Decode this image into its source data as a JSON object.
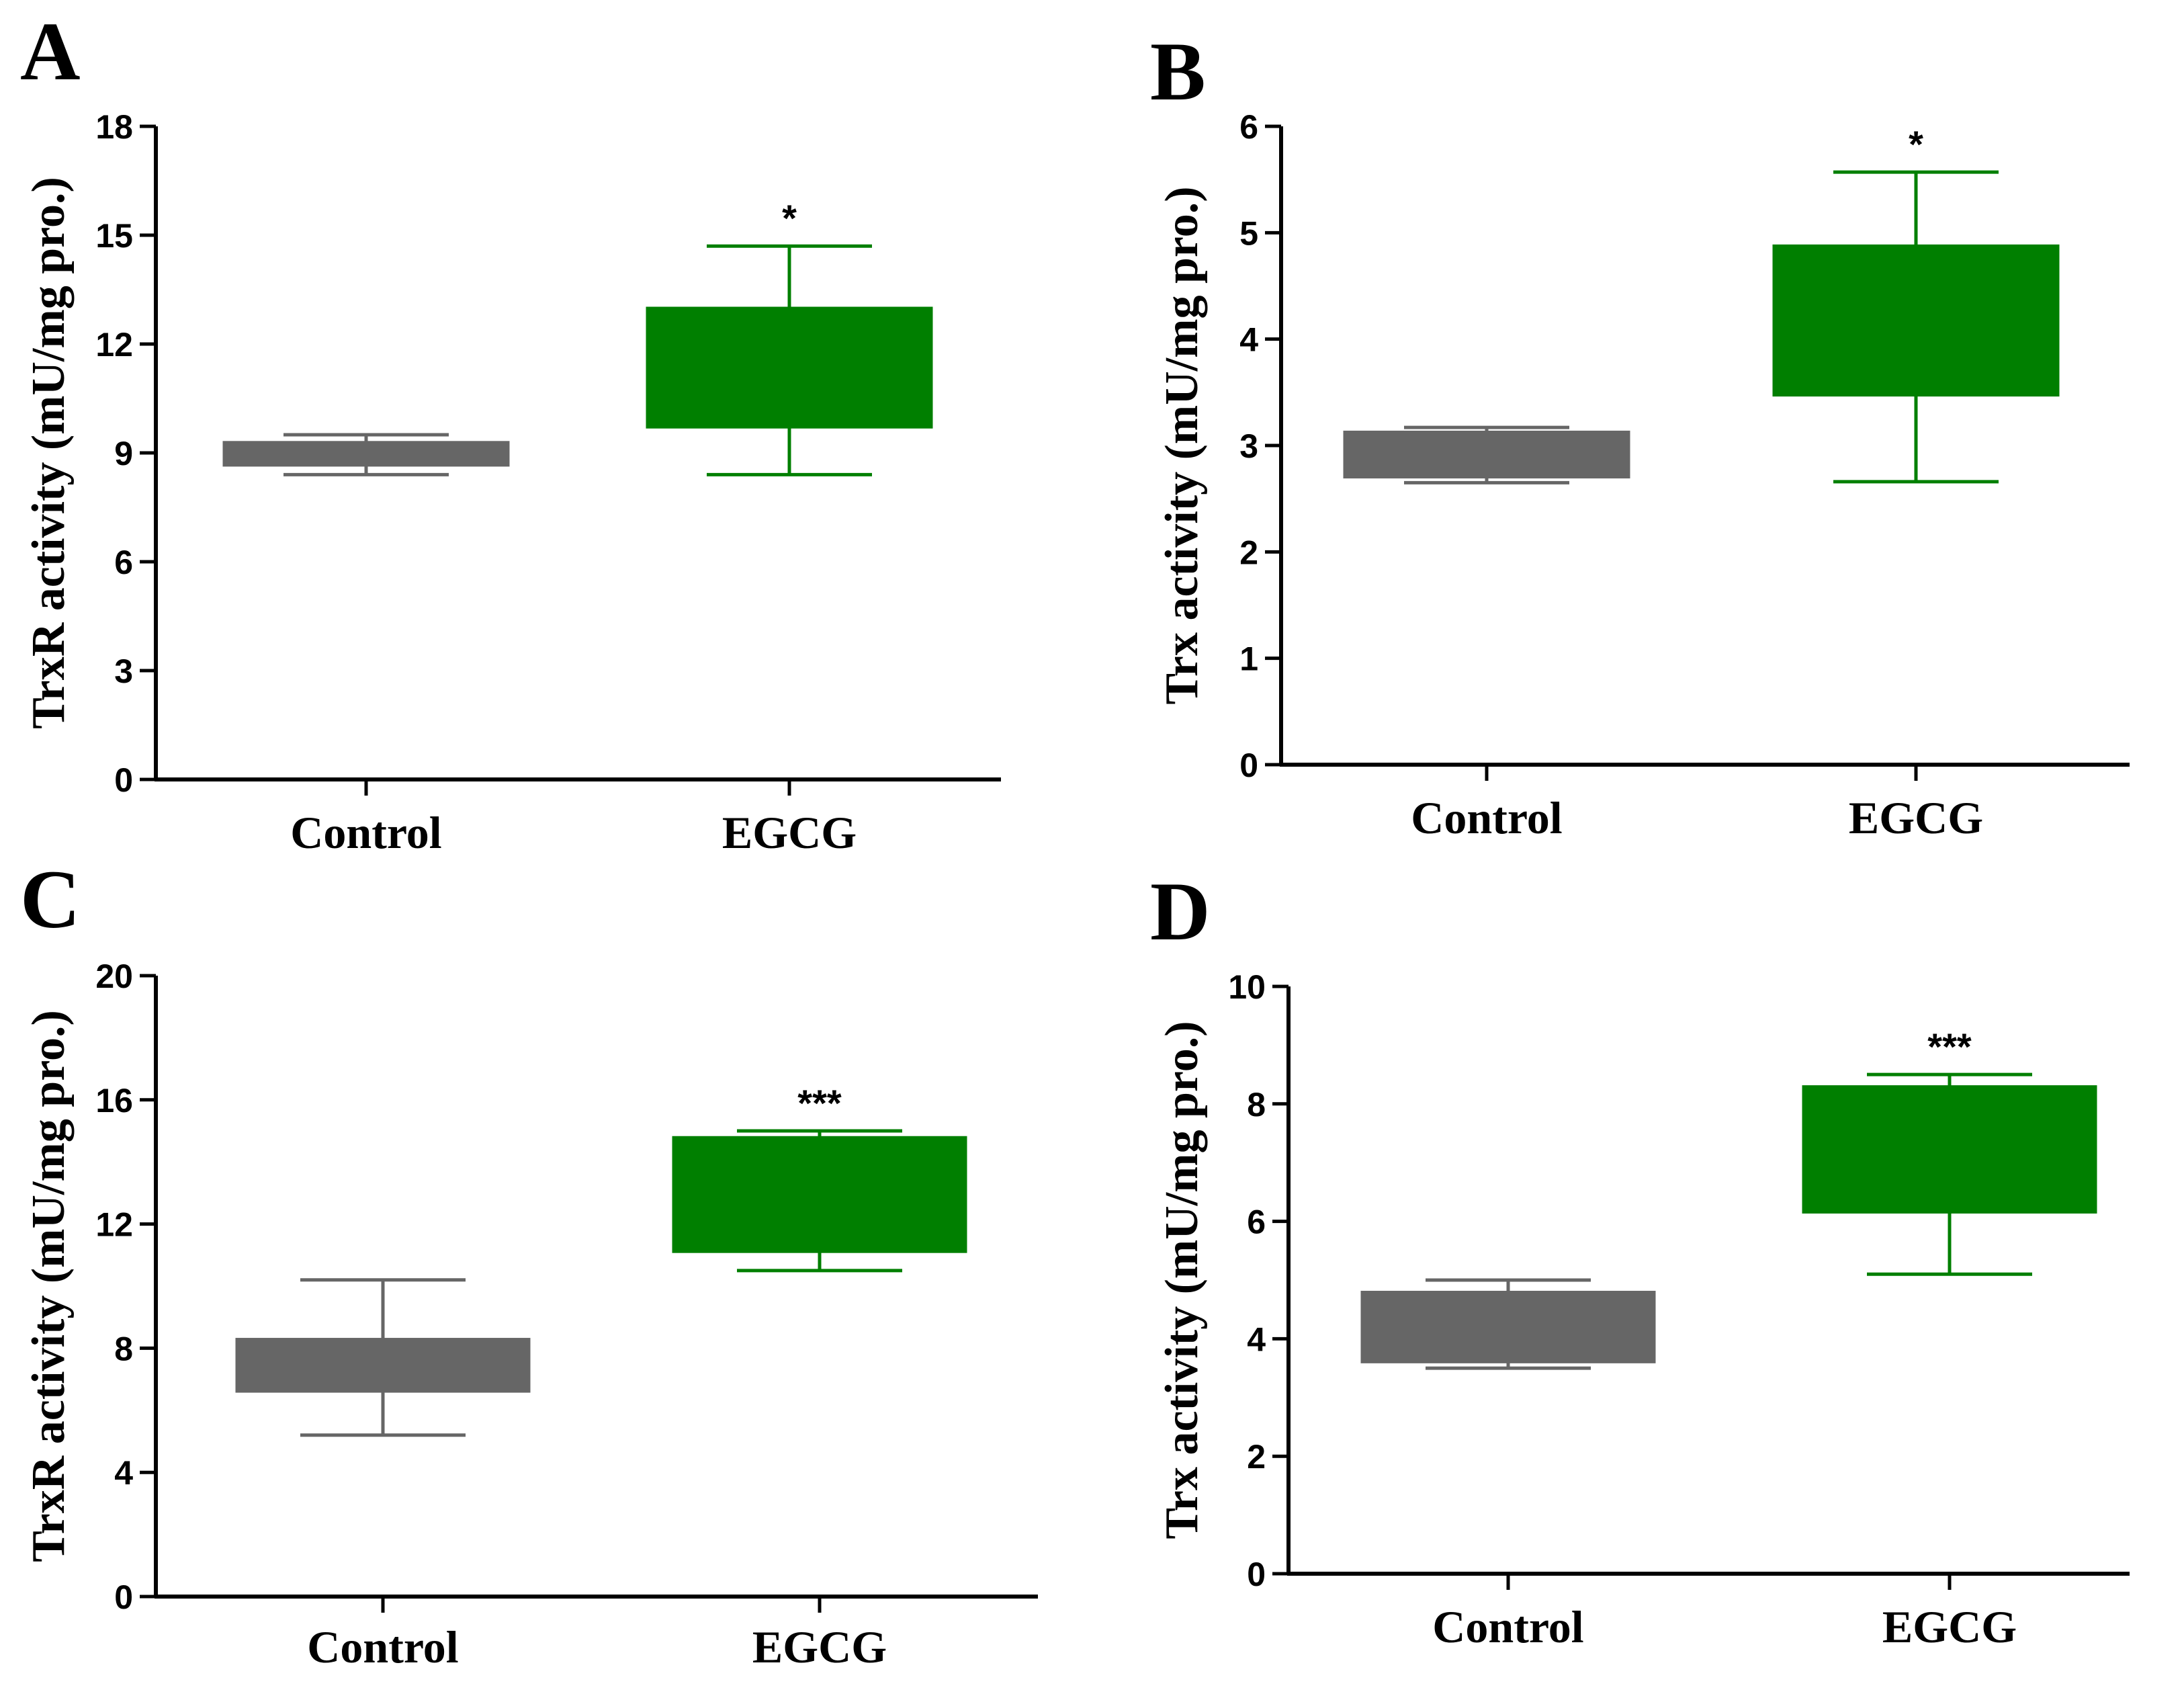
{
  "chart_data": [
    {
      "panel": "A",
      "type": "box",
      "ylabel": "TrxR activity (mU/mg pro.)",
      "ylim": [
        0,
        18
      ],
      "yticks": [
        "0",
        "3",
        "6",
        "9",
        "12",
        "15",
        "18"
      ],
      "categories": [
        "Control",
        "EGCG"
      ],
      "series": [
        {
          "name": "Control",
          "min": 8.4,
          "q1": 8.65,
          "q3": 9.3,
          "max": 9.5,
          "color": "#666666",
          "significance": ""
        },
        {
          "name": "EGCG",
          "min": 8.4,
          "q1": 9.7,
          "q3": 13.0,
          "max": 14.7,
          "color": "#007f00",
          "significance": "*"
        }
      ]
    },
    {
      "panel": "B",
      "type": "box",
      "ylabel": "Trx activity (mU/mg pro.)",
      "ylim": [
        0,
        6
      ],
      "yticks": [
        "0",
        "1",
        "2",
        "3",
        "4",
        "5",
        "6"
      ],
      "categories": [
        "Control",
        "EGCG"
      ],
      "series": [
        {
          "name": "Control",
          "min": 2.65,
          "q1": 2.7,
          "q3": 3.13,
          "max": 3.17,
          "color": "#666666",
          "significance": ""
        },
        {
          "name": "EGCG",
          "min": 2.66,
          "q1": 3.47,
          "q3": 4.88,
          "max": 5.57,
          "color": "#007f00",
          "significance": "*"
        }
      ]
    },
    {
      "panel": "C",
      "type": "box",
      "ylabel": "TrxR activity (mU/mg pro.)",
      "ylim": [
        0,
        20
      ],
      "yticks": [
        "0",
        "4",
        "8",
        "12",
        "16",
        "20"
      ],
      "categories": [
        "Control",
        "EGCG"
      ],
      "series": [
        {
          "name": "Control",
          "min": 5.2,
          "q1": 6.6,
          "q3": 8.3,
          "max": 10.2,
          "color": "#666666",
          "significance": ""
        },
        {
          "name": "EGCG",
          "min": 10.5,
          "q1": 11.1,
          "q3": 14.8,
          "max": 15.0,
          "color": "#007f00",
          "significance": "***"
        }
      ]
    },
    {
      "panel": "D",
      "type": "box",
      "ylabel": "Trx activity (mU/mg pro.)",
      "ylim": [
        0,
        10
      ],
      "yticks": [
        "0",
        "2",
        "4",
        "6",
        "8",
        "10"
      ],
      "categories": [
        "Control",
        "EGCG"
      ],
      "series": [
        {
          "name": "Control",
          "min": 3.5,
          "q1": 3.6,
          "q3": 4.8,
          "max": 5.0,
          "color": "#666666",
          "significance": ""
        },
        {
          "name": "EGCG",
          "min": 5.1,
          "q1": 6.15,
          "q3": 8.3,
          "max": 8.5,
          "color": "#007f00",
          "significance": "***"
        }
      ]
    }
  ]
}
